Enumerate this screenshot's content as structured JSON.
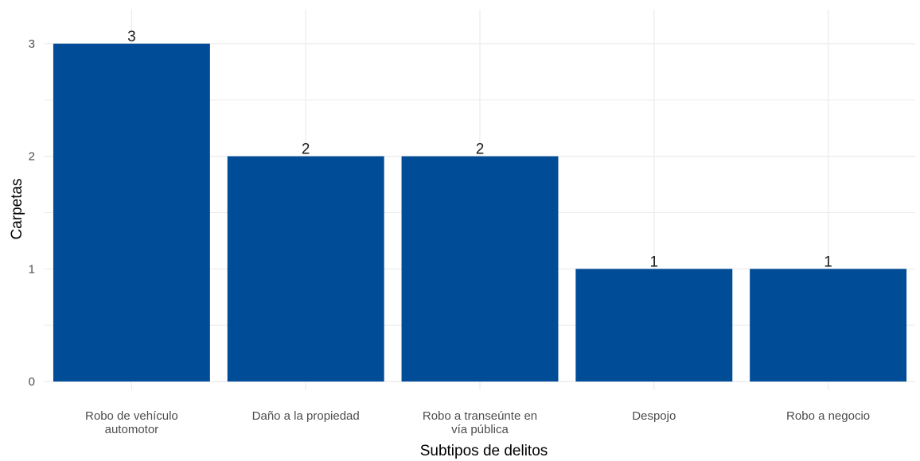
{
  "chart_data": {
    "type": "bar",
    "categories": [
      [
        "Robo de vehículo",
        "automotor"
      ],
      [
        "Daño a la propiedad"
      ],
      [
        "Robo a transeúnte en",
        "vía pública"
      ],
      [
        "Despojo"
      ],
      [
        "Robo a negocio"
      ]
    ],
    "values": [
      3,
      2,
      2,
      1,
      1
    ],
    "data_labels": [
      "3",
      "2",
      "2",
      "1",
      "1"
    ],
    "xlabel": "Subtipos de delitos",
    "ylabel": "Carpetas",
    "ylim": [
      0,
      3
    ],
    "yticks": [
      0,
      1,
      2,
      3
    ],
    "grid": true,
    "legend": "none",
    "bar_color": "#004C97",
    "grid_color": "#EBEBEB"
  }
}
